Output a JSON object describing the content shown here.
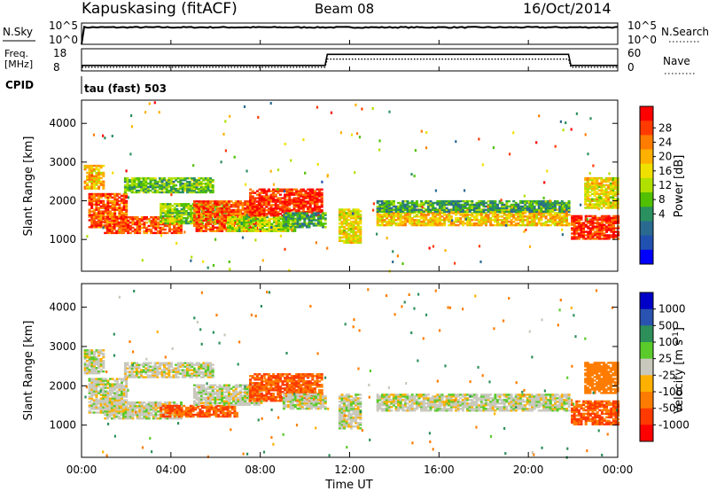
{
  "header": {
    "station": "Kapuskasing (fitACF)",
    "beam": "Beam 08",
    "date": "16/Oct/2014"
  },
  "top_panels": {
    "noise": {
      "left_label": "N.Sky",
      "right_label": "N.Search",
      "left_ticks": [
        "10^5",
        "10^0"
      ],
      "right_ticks": [
        "10^5",
        "10^0"
      ],
      "dotted_legend": true
    },
    "freq": {
      "left_label_1": "Freq.",
      "left_label_2": "[MHz]",
      "right_label": "Nave",
      "left_ticks": [
        "18",
        "8"
      ],
      "right_ticks": [
        "60",
        "0"
      ]
    },
    "cpid_label": "CPID",
    "cpid_value": "tau (fast) 503"
  },
  "power_colorbar": {
    "label": "Power [dB]",
    "ticks": [
      "28",
      "24",
      "20",
      "16",
      "12",
      "8",
      "4"
    ],
    "colors": [
      "#ff0000",
      "#ff3a00",
      "#ff7c00",
      "#ffb000",
      "#f0e000",
      "#b0e000",
      "#50c000",
      "#2a9060",
      "#2a6a90",
      "#2050b0",
      "#0000ff"
    ]
  },
  "velocity_colorbar": {
    "label": "Velocity [m s^-1]",
    "ticks": [
      "1000",
      "500",
      "100",
      "25",
      "-25",
      "-100",
      "-500",
      "-1000"
    ],
    "colors": [
      "#0000c8",
      "#2a52b0",
      "#2d8f5a",
      "#5acb2a",
      "#c8c8bd",
      "#ffb000",
      "#ff7c00",
      "#ff3a00",
      "#ff0000"
    ]
  },
  "x_axis": {
    "label": "Time UT",
    "ticks": [
      "00:00",
      "04:00",
      "08:00",
      "12:00",
      "16:00",
      "20:00",
      "00:00"
    ]
  },
  "chart_data": [
    {
      "type": "line",
      "title": "N.Sky / N.Search",
      "x": [
        0,
        24
      ],
      "series": [
        {
          "name": "N.Sky",
          "values": [
            10000,
            10000
          ]
        }
      ]
    },
    {
      "type": "line",
      "title": "Freq. [MHz] / Nave",
      "x": [
        0,
        0.05,
        10.9,
        11.0,
        21.8,
        21.9,
        24
      ],
      "series": [
        {
          "name": "Freq. [MHz]",
          "values": [
            10,
            10.5,
            10.5,
            15.5,
            15.5,
            10.5,
            10.5
          ]
        },
        {
          "name": "Nave",
          "values": [
            0,
            10,
            10,
            32,
            32,
            10,
            10
          ]
        }
      ]
    },
    {
      "type": "heatmap",
      "title": "Power [dB]",
      "xlabel": "Time UT",
      "ylabel": "Slant Range [km]",
      "xlim": [
        0,
        24
      ],
      "ylim": [
        180,
        4600
      ],
      "y_ticks": [
        1000,
        2000,
        3000,
        4000
      ],
      "regions": [
        {
          "x": [
            0.1,
            1.0
          ],
          "y": [
            2300,
            2900
          ],
          "v": 20
        },
        {
          "x": [
            0.3,
            2.0
          ],
          "y": [
            1300,
            2200
          ],
          "v": 26
        },
        {
          "x": [
            1.9,
            5.9
          ],
          "y": [
            2200,
            2600
          ],
          "v": 12
        },
        {
          "x": [
            1.0,
            4.5
          ],
          "y": [
            1150,
            1600
          ],
          "v": 26
        },
        {
          "x": [
            3.5,
            6.5
          ],
          "y": [
            1400,
            1900
          ],
          "v": 14
        },
        {
          "x": [
            5.0,
            8.0
          ],
          "y": [
            1200,
            2000
          ],
          "v": 26
        },
        {
          "x": [
            6.5,
            9.5
          ],
          "y": [
            1200,
            1600
          ],
          "v": 15
        },
        {
          "x": [
            7.5,
            10.8
          ],
          "y": [
            1600,
            2300
          ],
          "v": 28
        },
        {
          "x": [
            9.0,
            10.9
          ],
          "y": [
            1300,
            1700
          ],
          "v": 10
        },
        {
          "x": [
            11.5,
            12.5
          ],
          "y": [
            900,
            1800
          ],
          "v": 18
        },
        {
          "x": [
            13.2,
            21.8
          ],
          "y": [
            1350,
            1800
          ],
          "v": 20
        },
        {
          "x": [
            13.2,
            21.8
          ],
          "y": [
            1700,
            2000
          ],
          "v": 10
        },
        {
          "x": [
            21.9,
            24.0
          ],
          "y": [
            1000,
            1600
          ],
          "v": 28
        },
        {
          "x": [
            22.5,
            24.0
          ],
          "y": [
            1800,
            2600
          ],
          "v": 18
        }
      ]
    },
    {
      "type": "heatmap",
      "title": "Velocity [m s^-1]",
      "xlabel": "Time UT",
      "ylabel": "Slant Range [km]",
      "xlim": [
        0,
        24
      ],
      "ylim": [
        180,
        4600
      ],
      "y_ticks": [
        1000,
        2000,
        3000,
        4000
      ],
      "regions": [
        {
          "x": [
            0.1,
            1.0
          ],
          "y": [
            2300,
            2900
          ],
          "v": 0
        },
        {
          "x": [
            0.3,
            2.0
          ],
          "y": [
            1300,
            2200
          ],
          "v": 0
        },
        {
          "x": [
            1.9,
            5.9
          ],
          "y": [
            2200,
            2600
          ],
          "v": 0
        },
        {
          "x": [
            1.0,
            4.5
          ],
          "y": [
            1150,
            1600
          ],
          "v": 0
        },
        {
          "x": [
            3.5,
            7.0
          ],
          "y": [
            1200,
            1500
          ],
          "v": -300
        },
        {
          "x": [
            5.0,
            8.0
          ],
          "y": [
            1500,
            2000
          ],
          "v": 0
        },
        {
          "x": [
            7.5,
            10.8
          ],
          "y": [
            1600,
            2300
          ],
          "v": -300
        },
        {
          "x": [
            9.0,
            10.9
          ],
          "y": [
            1400,
            1800
          ],
          "v": 0
        },
        {
          "x": [
            11.5,
            12.5
          ],
          "y": [
            900,
            1800
          ],
          "v": 0
        },
        {
          "x": [
            13.2,
            21.8
          ],
          "y": [
            1350,
            1800
          ],
          "v": 0
        },
        {
          "x": [
            21.9,
            24.0
          ],
          "y": [
            1000,
            1600
          ],
          "v": -300
        },
        {
          "x": [
            22.5,
            24.0
          ],
          "y": [
            1800,
            2600
          ],
          "v": -100
        }
      ]
    }
  ]
}
